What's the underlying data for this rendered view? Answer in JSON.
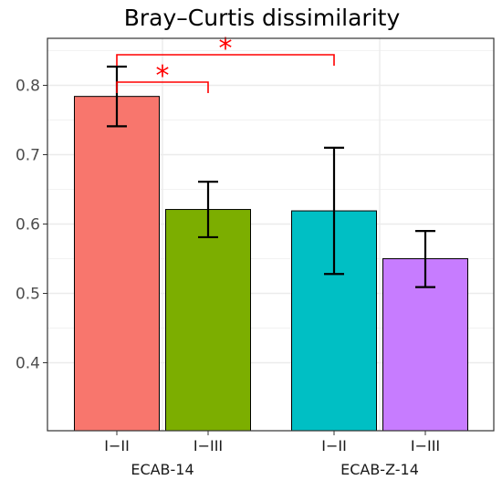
{
  "chart_data": {
    "type": "bar",
    "title": "Bray–Curtis dissimilarity",
    "xlabel": "",
    "ylabel": "",
    "ylim": [
      0.46,
      0.86
    ],
    "yticks": [
      "0.4",
      "0.5",
      "0.6",
      "0.7",
      "0.8"
    ],
    "grid": true,
    "groups": [
      {
        "name": "ECAB-14",
        "bars": [
          {
            "category": "I−II",
            "value": 0.784,
            "err_low": 0.741,
            "err_high": 0.827,
            "color": "#F8766D"
          },
          {
            "category": "I−III",
            "value": 0.621,
            "err_low": 0.581,
            "err_high": 0.661,
            "color": "#7CAE00"
          }
        ]
      },
      {
        "name": "ECAB-Z-14",
        "bars": [
          {
            "category": "I−II",
            "value": 0.619,
            "err_low": 0.528,
            "err_high": 0.71,
            "color": "#00BFC4"
          },
          {
            "category": "I−III",
            "value": 0.55,
            "err_low": 0.509,
            "err_high": 0.59,
            "color": "#C77CFF"
          }
        ]
      }
    ],
    "annotations": [
      {
        "label": "*",
        "from": "ECAB-14 I−II",
        "to": "ECAB-14 I−III",
        "color": "#FF0000"
      },
      {
        "label": "*",
        "from": "ECAB-14 I−II",
        "to": "ECAB-Z-14 I−II",
        "color": "#FF0000"
      }
    ]
  }
}
